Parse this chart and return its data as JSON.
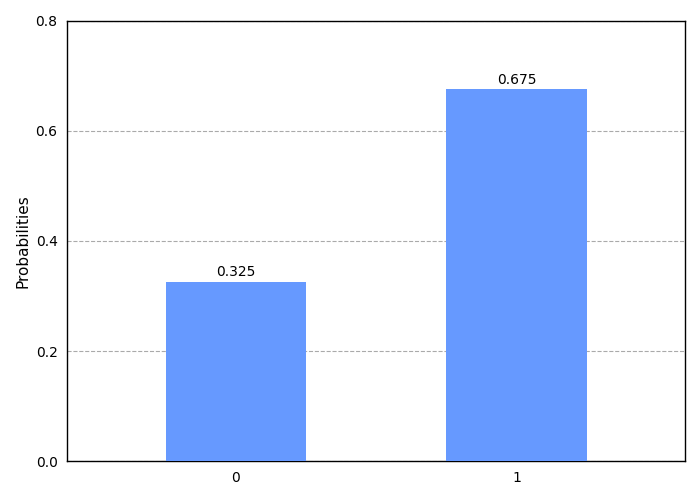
{
  "categories": [
    "0",
    "1"
  ],
  "values": [
    0.325,
    0.675
  ],
  "bar_color": "#6699FF",
  "ylabel": "Probabilities",
  "ylim": [
    0,
    0.8
  ],
  "yticks": [
    0.0,
    0.2,
    0.4,
    0.6,
    0.8
  ],
  "grid_color": "#AAAAAA",
  "grid_linestyle": "--",
  "bar_width": 0.5,
  "label_fontsize": 10,
  "figsize": [
    7.0,
    5.0
  ],
  "dpi": 100
}
